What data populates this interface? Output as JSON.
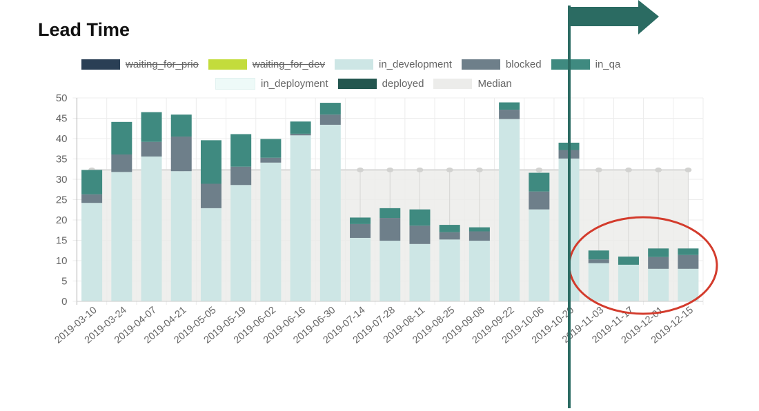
{
  "chart_data": {
    "type": "bar",
    "stacked": true,
    "title": "Lead Time",
    "xlabel": "",
    "ylabel": "",
    "ylim": [
      0,
      50
    ],
    "yticks": [
      0,
      5,
      10,
      15,
      20,
      25,
      30,
      35,
      40,
      45,
      50
    ],
    "grid": true,
    "legend_position": "top",
    "categories": [
      "2019-03-10",
      "2019-03-24",
      "2019-04-07",
      "2019-04-21",
      "2019-05-05",
      "2019-05-19",
      "2019-06-02",
      "2019-06-16",
      "2019-06-30",
      "2019-07-14",
      "2019-07-28",
      "2019-08-11",
      "2019-08-25",
      "2019-09-08",
      "2019-09-22",
      "2019-10-06",
      "2019-10-20",
      "2019-11-03",
      "2019-11-17",
      "2019-12-01",
      "2019-12-15"
    ],
    "legend": [
      {
        "name": "waiting_for_prio",
        "color": "#2a3f55",
        "hidden": true
      },
      {
        "name": "waiting_for_dev",
        "color": "#c3dc3c",
        "hidden": true
      },
      {
        "name": "in_development",
        "color": "#cde6e5",
        "hidden": false
      },
      {
        "name": "blocked",
        "color": "#6e7f8a",
        "hidden": false
      },
      {
        "name": "in_qa",
        "color": "#3f8a80",
        "hidden": false
      },
      {
        "name": "in_deployment",
        "color": "#eefaf8",
        "hidden": false
      },
      {
        "name": "deployed",
        "color": "#23564f",
        "hidden": false
      },
      {
        "name": "Median",
        "color": "#ececea",
        "hidden": false
      }
    ],
    "series": [
      {
        "name": "in_development",
        "color": "#cde6e5",
        "values": [
          24.2,
          31.8,
          35.6,
          32.0,
          22.9,
          28.6,
          34.1,
          40.8,
          43.4,
          15.6,
          14.9,
          14.1,
          15.2,
          14.9,
          44.8,
          22.6,
          35.1,
          9.4,
          9.0,
          8.0,
          8.0
        ]
      },
      {
        "name": "blocked",
        "color": "#6e7f8a",
        "values": [
          2.1,
          4.3,
          3.6,
          8.5,
          6.0,
          4.5,
          1.2,
          0.4,
          2.5,
          3.4,
          5.6,
          4.5,
          1.8,
          2.3,
          2.3,
          4.4,
          2.1,
          0.9,
          0,
          2.9,
          3.4
        ]
      },
      {
        "name": "in_qa",
        "color": "#3f8a80",
        "values": [
          6.0,
          8.0,
          7.3,
          5.4,
          10.7,
          8.0,
          4.6,
          3.0,
          2.9,
          1.6,
          2.4,
          4.0,
          1.8,
          1.0,
          1.8,
          4.6,
          1.8,
          2.2,
          2.0,
          2.1,
          1.6
        ]
      }
    ],
    "median": {
      "name": "Median",
      "value": 32.3,
      "color": "#ececea"
    }
  }
}
